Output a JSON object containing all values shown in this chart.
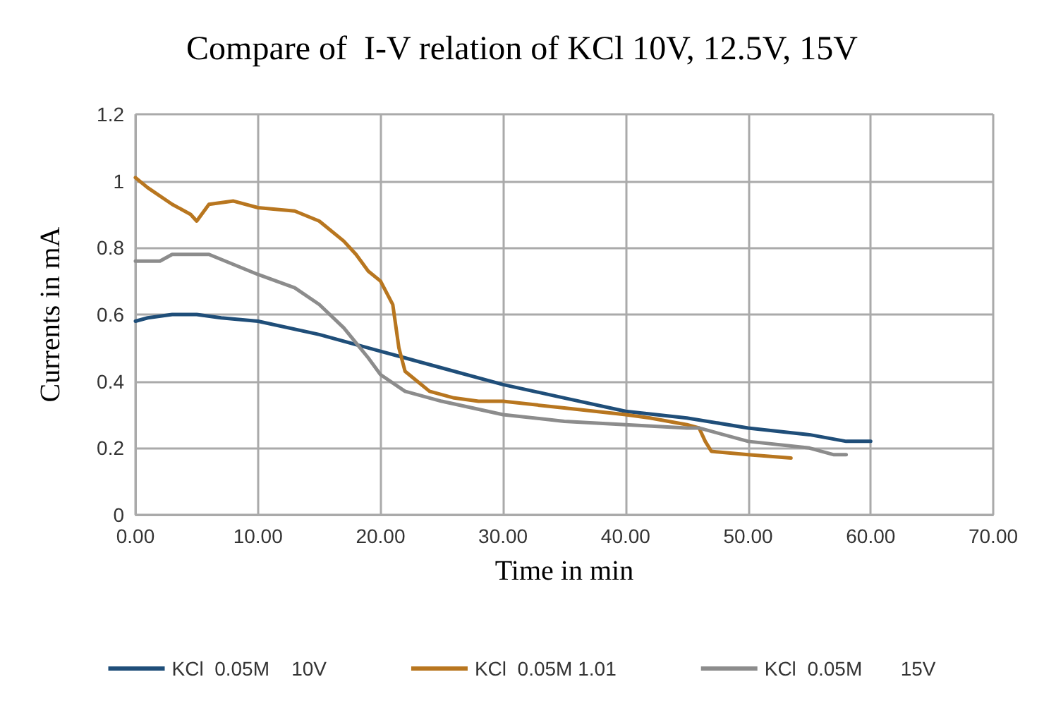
{
  "chart_data": {
    "type": "line",
    "title": "Compare of  I-V relation of KCl 10V, 12.5V, 15V",
    "xlabel": "Time in min",
    "ylabel": "Currents in mA",
    "xlim": [
      0,
      70
    ],
    "xticks": [
      {
        "value": 0,
        "label": "0.00"
      },
      {
        "value": 10,
        "label": "10.00"
      },
      {
        "value": 20,
        "label": "20.00"
      },
      {
        "value": 30,
        "label": "30.00"
      },
      {
        "value": 40,
        "label": "40.00"
      },
      {
        "value": 50,
        "label": "50.00"
      },
      {
        "value": 60,
        "label": "60.00"
      },
      {
        "value": 70,
        "label": "70.00"
      }
    ],
    "ylim": [
      0,
      1.2
    ],
    "yticks": [
      0,
      0.2,
      0.4,
      0.6,
      0.8,
      1,
      1.2
    ],
    "grid": true,
    "legend": "bottom",
    "marker": "none",
    "line_style": "solid",
    "series": [
      {
        "name": "KCl  0.05M    10V",
        "color": "#1f4e79",
        "x": [
          0,
          1,
          3,
          5,
          7,
          10,
          15,
          20,
          22,
          25,
          30,
          35,
          40,
          45,
          50,
          55,
          58,
          60
        ],
        "values": [
          0.58,
          0.59,
          0.6,
          0.6,
          0.59,
          0.58,
          0.54,
          0.49,
          0.47,
          0.44,
          0.39,
          0.35,
          0.31,
          0.29,
          0.26,
          0.24,
          0.22,
          0.22
        ]
      },
      {
        "name": "KCl  0.05M 1.01",
        "color": "#b8761f",
        "x": [
          0,
          1,
          3,
          4.5,
          5,
          6,
          8,
          10,
          13,
          15,
          17,
          18,
          19,
          20,
          21,
          21.5,
          22,
          24,
          26,
          28,
          30,
          35,
          40,
          42,
          45,
          46,
          46.5,
          47,
          50,
          53.5
        ],
        "values": [
          1.01,
          0.98,
          0.93,
          0.9,
          0.88,
          0.93,
          0.94,
          0.92,
          0.91,
          0.88,
          0.82,
          0.78,
          0.73,
          0.7,
          0.63,
          0.5,
          0.43,
          0.37,
          0.35,
          0.34,
          0.34,
          0.32,
          0.3,
          0.29,
          0.27,
          0.26,
          0.22,
          0.19,
          0.18,
          0.17
        ]
      },
      {
        "name": "KCl  0.05M       15V",
        "color": "#8c8c8c",
        "x": [
          0,
          2,
          3,
          6,
          8,
          10,
          13,
          15,
          17,
          19,
          20,
          22,
          25,
          30,
          35,
          40,
          45,
          46,
          47,
          50,
          55,
          57,
          58
        ],
        "values": [
          0.76,
          0.76,
          0.78,
          0.78,
          0.75,
          0.72,
          0.68,
          0.63,
          0.56,
          0.47,
          0.42,
          0.37,
          0.34,
          0.3,
          0.28,
          0.27,
          0.26,
          0.26,
          0.25,
          0.22,
          0.2,
          0.18,
          0.18
        ]
      }
    ]
  }
}
